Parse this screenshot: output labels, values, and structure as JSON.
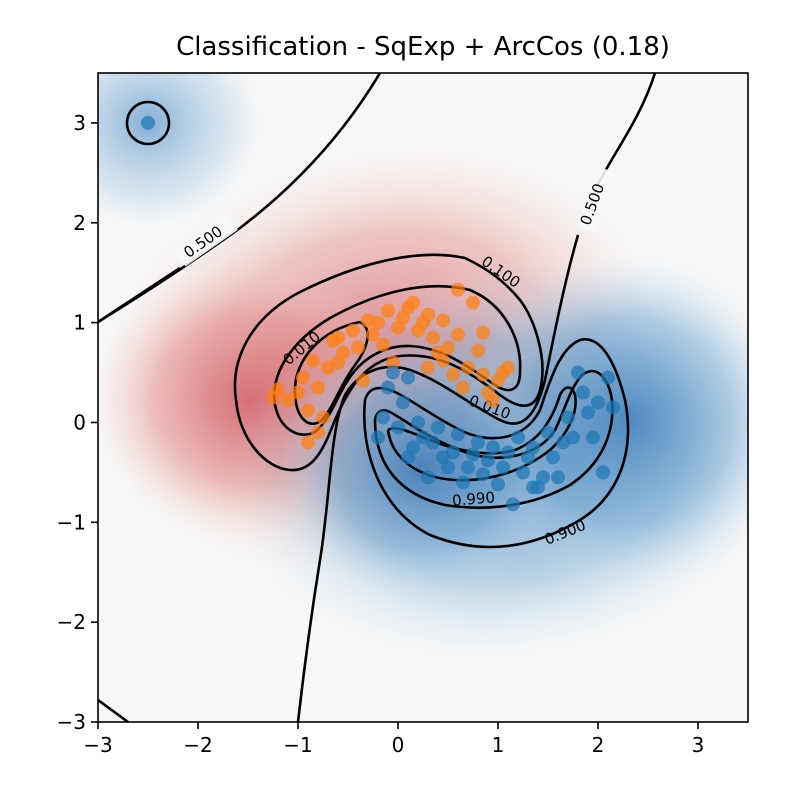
{
  "chart_data": {
    "type": "scatter",
    "title": "Classification - SqExp + ArcCos (0.18)",
    "xlabel": "",
    "ylabel": "",
    "xlim": [
      -3,
      3.5
    ],
    "ylim": [
      -3,
      3.5
    ],
    "xticks": [
      -3,
      -2,
      -1,
      0,
      1,
      2,
      3
    ],
    "yticks": [
      -3,
      -2,
      -1,
      0,
      1,
      2,
      3
    ],
    "tick_labels_x": [
      "−3",
      "−2",
      "−1",
      "0",
      "1",
      "2",
      "3"
    ],
    "tick_labels_y": [
      "−3",
      "−2",
      "−1",
      "0",
      "1",
      "2",
      "3"
    ],
    "grid": false,
    "legend": "none",
    "colors": {
      "class_0": "#ff7f0e",
      "class_1": "#1f77b4",
      "low_prob": "#c8505a",
      "high_prob": "#3b7bb8"
    },
    "series": [
      {
        "color": "#ff7f0e",
        "points": [
          [
            -1.2,
            0.33
          ],
          [
            -1.1,
            0.22
          ],
          [
            -1.0,
            0.3
          ],
          [
            -0.95,
            0.45
          ],
          [
            -0.9,
            0.12
          ],
          [
            -0.85,
            0.62
          ],
          [
            -0.8,
            0.35
          ],
          [
            -0.75,
            0.05
          ],
          [
            -0.7,
            0.55
          ],
          [
            -0.65,
            0.82
          ],
          [
            -0.6,
            0.6
          ],
          [
            -0.55,
            0.7
          ],
          [
            -0.45,
            0.92
          ],
          [
            -0.4,
            0.75
          ],
          [
            -0.35,
            0.42
          ],
          [
            -0.3,
            1.02
          ],
          [
            -0.25,
            0.88
          ],
          [
            -0.2,
            1.0
          ],
          [
            -0.15,
            0.78
          ],
          [
            -0.1,
            1.12
          ],
          [
            0.0,
            0.95
          ],
          [
            0.05,
            1.05
          ],
          [
            0.15,
            1.2
          ],
          [
            0.2,
            0.92
          ],
          [
            0.25,
            1.0
          ],
          [
            0.3,
            1.08
          ],
          [
            0.35,
            0.85
          ],
          [
            0.4,
            0.7
          ],
          [
            0.45,
            0.62
          ],
          [
            0.5,
            0.75
          ],
          [
            0.55,
            0.48
          ],
          [
            0.6,
            0.88
          ],
          [
            0.65,
            0.35
          ],
          [
            0.7,
            0.55
          ],
          [
            0.75,
            1.2
          ],
          [
            0.8,
            0.72
          ],
          [
            0.85,
            0.48
          ],
          [
            0.9,
            0.3
          ],
          [
            0.95,
            0.22
          ],
          [
            1.0,
            0.42
          ],
          [
            1.05,
            0.5
          ],
          [
            1.1,
            0.55
          ],
          [
            -1.25,
            0.25
          ],
          [
            -0.9,
            -0.2
          ],
          [
            -0.8,
            -0.1
          ],
          [
            0.6,
            1.33
          ],
          [
            0.45,
            1.02
          ],
          [
            0.1,
            1.15
          ],
          [
            -0.6,
            0.85
          ],
          [
            0.85,
            0.9
          ],
          [
            -0.05,
            0.6
          ],
          [
            0.3,
            0.55
          ]
        ]
      },
      {
        "color": "#1f77b4",
        "points": [
          [
            -0.2,
            -0.15
          ],
          [
            -0.15,
            0.05
          ],
          [
            -0.1,
            0.35
          ],
          [
            -0.05,
            0.5
          ],
          [
            0.0,
            -0.05
          ],
          [
            0.05,
            0.2
          ],
          [
            0.1,
            0.45
          ],
          [
            0.15,
            -0.25
          ],
          [
            0.2,
            0.0
          ],
          [
            0.25,
            -0.15
          ],
          [
            0.3,
            -0.55
          ],
          [
            0.35,
            -0.2
          ],
          [
            0.4,
            -0.05
          ],
          [
            0.45,
            -0.35
          ],
          [
            0.5,
            -0.45
          ],
          [
            0.55,
            -0.3
          ],
          [
            0.6,
            -0.12
          ],
          [
            0.65,
            -0.6
          ],
          [
            0.7,
            -0.45
          ],
          [
            0.75,
            -0.32
          ],
          [
            0.8,
            -0.2
          ],
          [
            0.85,
            -0.52
          ],
          [
            0.9,
            -0.38
          ],
          [
            0.95,
            -0.25
          ],
          [
            1.0,
            -0.62
          ],
          [
            1.05,
            -0.45
          ],
          [
            1.1,
            -0.3
          ],
          [
            1.15,
            -0.82
          ],
          [
            1.2,
            -0.15
          ],
          [
            1.25,
            -0.5
          ],
          [
            1.3,
            -0.35
          ],
          [
            1.35,
            -0.25
          ],
          [
            1.4,
            -0.65
          ],
          [
            1.45,
            -0.55
          ],
          [
            1.5,
            -0.1
          ],
          [
            1.55,
            -0.35
          ],
          [
            1.6,
            -0.55
          ],
          [
            1.65,
            -0.2
          ],
          [
            1.7,
            0.05
          ],
          [
            1.75,
            -0.15
          ],
          [
            1.8,
            0.5
          ],
          [
            1.85,
            0.3
          ],
          [
            1.9,
            0.1
          ],
          [
            1.95,
            -0.15
          ],
          [
            2.0,
            0.2
          ],
          [
            2.05,
            -0.5
          ],
          [
            2.1,
            0.45
          ],
          [
            2.15,
            0.15
          ],
          [
            0.1,
            -0.35
          ],
          [
            1.35,
            -0.65
          ],
          [
            -2.5,
            3.0
          ]
        ]
      }
    ],
    "contours": [
      {
        "level": 0.5,
        "label": "0.500"
      },
      {
        "level": 0.1,
        "label": "0.100"
      },
      {
        "level": 0.01,
        "label": "0.010"
      },
      {
        "level": 0.9,
        "label": "0.900"
      },
      {
        "level": 0.99,
        "label": "0.990"
      }
    ]
  }
}
